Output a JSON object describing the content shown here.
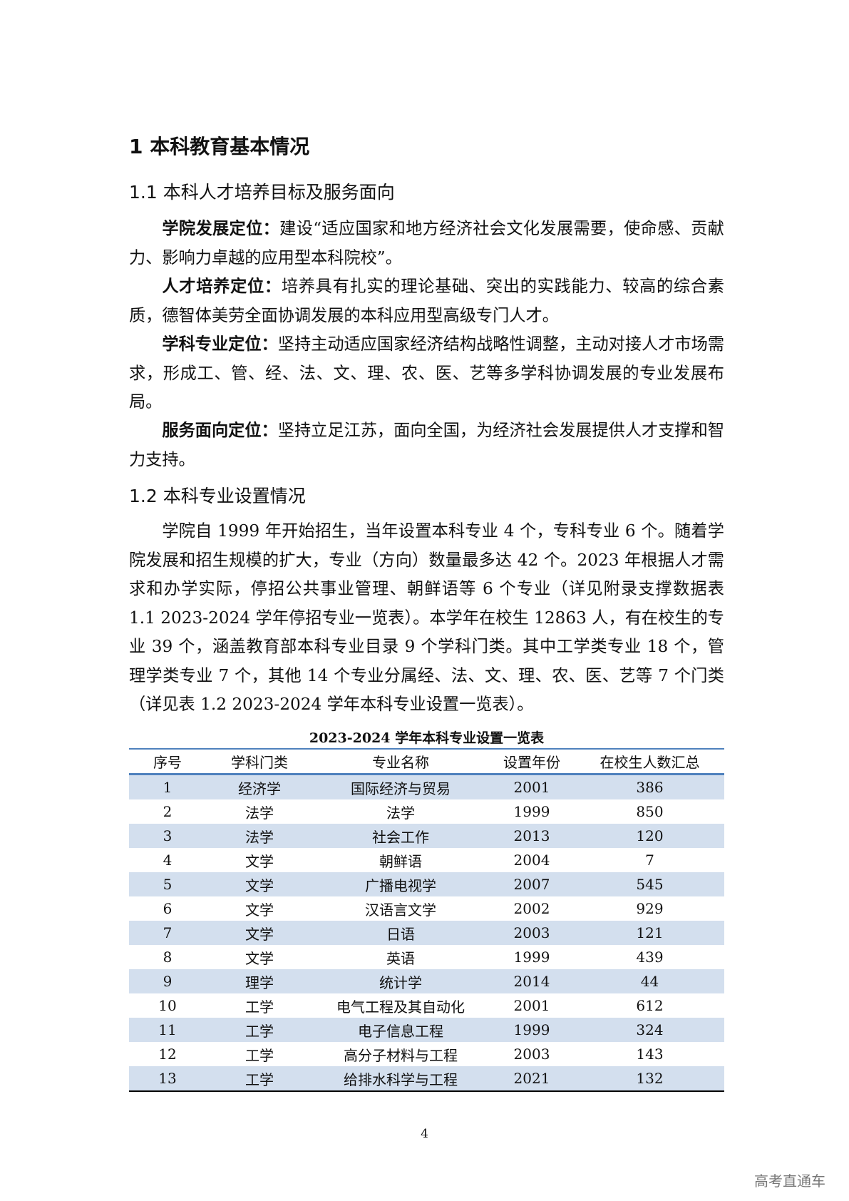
{
  "h1": "1  本科教育基本情况",
  "s11": "1.1 本科人才培养目标及服务面向",
  "paras": [
    {
      "label": "学院发展定位：",
      "text": "建设“适应国家和地方经济社会文化发展需要，使命感、贡献力、影响力卓越的应用型本科院校”。"
    },
    {
      "label": "人才培养定位：",
      "text": "培养具有扎实的理论基础、突出的实践能力、较高的综合素质，德智体美劳全面协调发展的本科应用型高级专门人才。"
    },
    {
      "label": "学科专业定位：",
      "text": "坚持主动适应国家经济结构战略性调整，主动对接人才市场需求，形成工、管、经、法、文、理、农、医、艺等多学科协调发展的专业发展布局。"
    },
    {
      "label": "服务面向定位：",
      "text": "坚持立足江苏，面向全国，为经济社会发展提供人才支撑和智力支持。"
    }
  ],
  "s12": "1.2 本科专业设置情况",
  "p12": "学院自 1999 年开始招生，当年设置本科专业 4 个，专科专业 6 个。随着学院发展和招生规模的扩大，专业（方向）数量最多达 42 个。2023 年根据人才需求和办学实际，停招公共事业管理、朝鲜语等 6 个专业（详见附录支撑数据表 1.1 2023-2024 学年停招专业一览表）。本学年在校生 12863 人，有在校生的专业 39 个，涵盖教育部本科专业目录 9 个学科门类。其中工学类专业 18 个，管理学类专业 7 个，其他 14 个专业分属经、法、文、理、农、医、艺等 7 个门类（详见表 1.2 2023-2024 学年本科专业设置一览表）。",
  "table": {
    "caption": "2023-2024 学年本科专业设置一览表",
    "headers": [
      "序号",
      "学科门类",
      "专业名称",
      "设置年份",
      "在校生人数汇总"
    ],
    "rows": [
      [
        "1",
        "经济学",
        "国际经济与贸易",
        "2001",
        "386"
      ],
      [
        "2",
        "法学",
        "法学",
        "1999",
        "850"
      ],
      [
        "3",
        "法学",
        "社会工作",
        "2013",
        "120"
      ],
      [
        "4",
        "文学",
        "朝鲜语",
        "2004",
        "7"
      ],
      [
        "5",
        "文学",
        "广播电视学",
        "2007",
        "545"
      ],
      [
        "6",
        "文学",
        "汉语言文学",
        "2002",
        "929"
      ],
      [
        "7",
        "文学",
        "日语",
        "2003",
        "121"
      ],
      [
        "8",
        "文学",
        "英语",
        "1999",
        "439"
      ],
      [
        "9",
        "理学",
        "统计学",
        "2014",
        "44"
      ],
      [
        "10",
        "工学",
        "电气工程及其自动化",
        "2001",
        "612"
      ],
      [
        "11",
        "工学",
        "电子信息工程",
        "1999",
        "324"
      ],
      [
        "12",
        "工学",
        "高分子材料与工程",
        "2003",
        "143"
      ],
      [
        "13",
        "工学",
        "给排水科学与工程",
        "2021",
        "132"
      ]
    ]
  },
  "page_number": "4",
  "watermark": "高考直通车"
}
